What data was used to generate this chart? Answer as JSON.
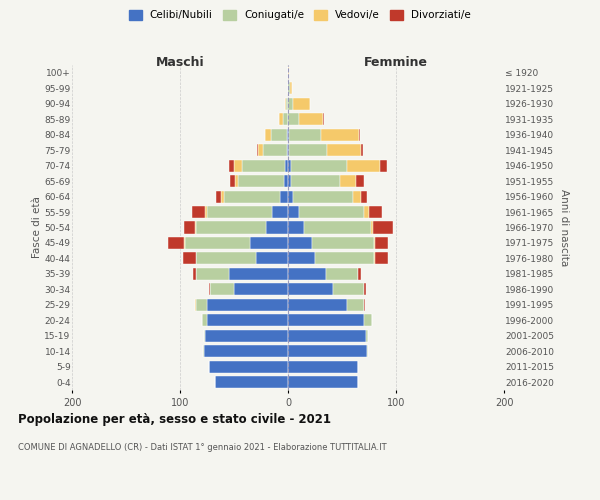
{
  "age_groups": [
    "0-4",
    "5-9",
    "10-14",
    "15-19",
    "20-24",
    "25-29",
    "30-34",
    "35-39",
    "40-44",
    "45-49",
    "50-54",
    "55-59",
    "60-64",
    "65-69",
    "70-74",
    "75-79",
    "80-84",
    "85-89",
    "90-94",
    "95-99",
    "100+"
  ],
  "birth_years": [
    "2016-2020",
    "2011-2015",
    "2006-2010",
    "2001-2005",
    "1996-2000",
    "1991-1995",
    "1986-1990",
    "1981-1985",
    "1976-1980",
    "1971-1975",
    "1966-1970",
    "1961-1965",
    "1956-1960",
    "1951-1955",
    "1946-1950",
    "1941-1945",
    "1936-1940",
    "1931-1935",
    "1926-1930",
    "1921-1925",
    "≤ 1920"
  ],
  "males": {
    "celibi": [
      68,
      73,
      78,
      77,
      75,
      75,
      50,
      55,
      30,
      35,
      20,
      15,
      7,
      4,
      3,
      1,
      1,
      0,
      0,
      0,
      0
    ],
    "coniugati": [
      0,
      0,
      1,
      1,
      5,
      10,
      22,
      30,
      55,
      60,
      65,
      60,
      52,
      42,
      40,
      22,
      15,
      5,
      2,
      0,
      0
    ],
    "vedovi": [
      0,
      0,
      0,
      0,
      0,
      1,
      0,
      0,
      0,
      1,
      1,
      2,
      3,
      3,
      7,
      5,
      5,
      3,
      1,
      0,
      0
    ],
    "divorziati": [
      0,
      0,
      0,
      0,
      0,
      0,
      1,
      3,
      12,
      15,
      10,
      12,
      5,
      5,
      5,
      1,
      0,
      0,
      0,
      0,
      0
    ]
  },
  "females": {
    "nubili": [
      65,
      65,
      73,
      72,
      70,
      55,
      42,
      35,
      25,
      22,
      15,
      10,
      5,
      3,
      3,
      1,
      1,
      0,
      0,
      0,
      0
    ],
    "coniugate": [
      0,
      0,
      1,
      2,
      8,
      15,
      28,
      30,
      55,
      58,
      62,
      60,
      55,
      45,
      52,
      35,
      30,
      10,
      5,
      2,
      0
    ],
    "vedove": [
      0,
      0,
      0,
      0,
      0,
      0,
      0,
      0,
      1,
      1,
      2,
      5,
      8,
      15,
      30,
      32,
      35,
      22,
      15,
      2,
      1
    ],
    "divorziate": [
      0,
      0,
      0,
      0,
      0,
      1,
      2,
      3,
      12,
      12,
      18,
      12,
      5,
      7,
      7,
      1,
      1,
      1,
      0,
      0,
      0
    ]
  },
  "colors": {
    "celibi_nubili": "#4472c4",
    "coniugati": "#b8cfa0",
    "vedovi": "#f5c96a",
    "divorziati": "#c0392b"
  },
  "xlim": 200,
  "title": "Popolazione per età, sesso e stato civile - 2021",
  "subtitle": "COMUNE DI AGNADELLO (CR) - Dati ISTAT 1° gennaio 2021 - Elaborazione TUTTITALIA.IT",
  "ylabel_left": "Fasce di età",
  "ylabel_right": "Anni di nascita",
  "xlabel_maschi": "Maschi",
  "xlabel_femmine": "Femmine",
  "background_color": "#f5f5f0",
  "grid_color": "#cccccc"
}
